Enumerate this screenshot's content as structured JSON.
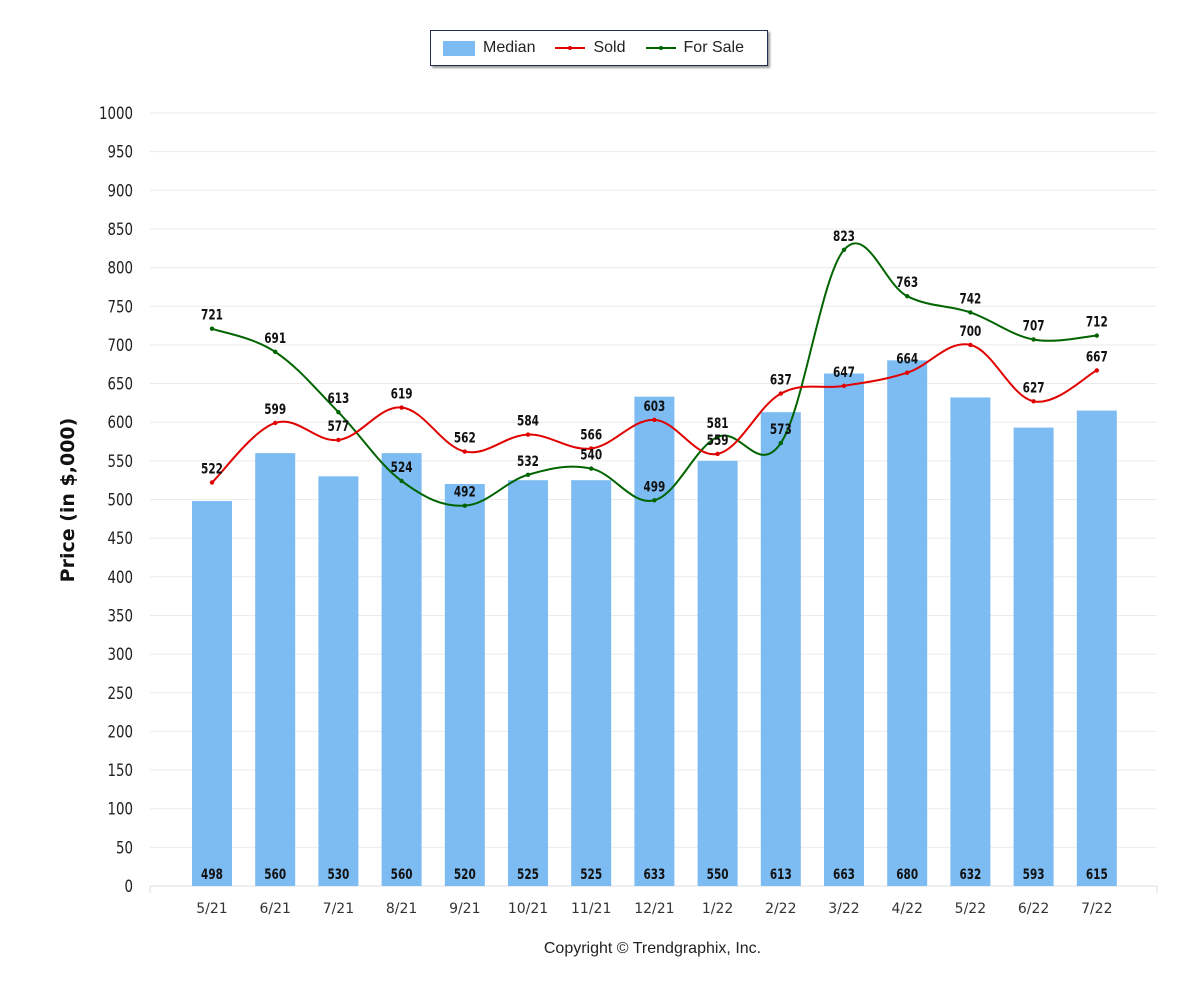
{
  "legend": {
    "median": "Median",
    "sold": "Sold",
    "for_sale": "For Sale"
  },
  "ylabel": "Price (in $,000)",
  "copyright": "Copyright © Trendgraphix, Inc.",
  "colors": {
    "median": "#7dbcf3",
    "sold": "#e00000",
    "for_sale": "#006400",
    "grid": "#ebebeb"
  },
  "chart_data": {
    "type": "bar",
    "categories": [
      "5/21",
      "6/21",
      "7/21",
      "8/21",
      "9/21",
      "10/21",
      "11/21",
      "12/21",
      "1/22",
      "2/22",
      "3/22",
      "4/22",
      "5/22",
      "6/22",
      "7/22"
    ],
    "series": [
      {
        "name": "Median",
        "type": "bar",
        "values": [
          498,
          560,
          530,
          560,
          520,
          525,
          525,
          633,
          550,
          613,
          663,
          680,
          632,
          593,
          615
        ]
      },
      {
        "name": "Sold",
        "type": "line",
        "values": [
          522,
          599,
          577,
          619,
          562,
          584,
          566,
          603,
          559,
          637,
          647,
          664,
          700,
          627,
          667
        ]
      },
      {
        "name": "For Sale",
        "type": "line",
        "values": [
          721,
          691,
          613,
          524,
          492,
          532,
          540,
          499,
          581,
          573,
          823,
          763,
          742,
          707,
          712
        ]
      }
    ],
    "ylabel": "Price (in $,000)",
    "ylim": [
      0,
      1000
    ],
    "yticks": [
      0,
      50,
      100,
      150,
      200,
      250,
      300,
      350,
      400,
      450,
      500,
      550,
      600,
      650,
      700,
      750,
      800,
      850,
      900,
      950,
      1000
    ],
    "grid": true,
    "legend_position": "top-center"
  }
}
